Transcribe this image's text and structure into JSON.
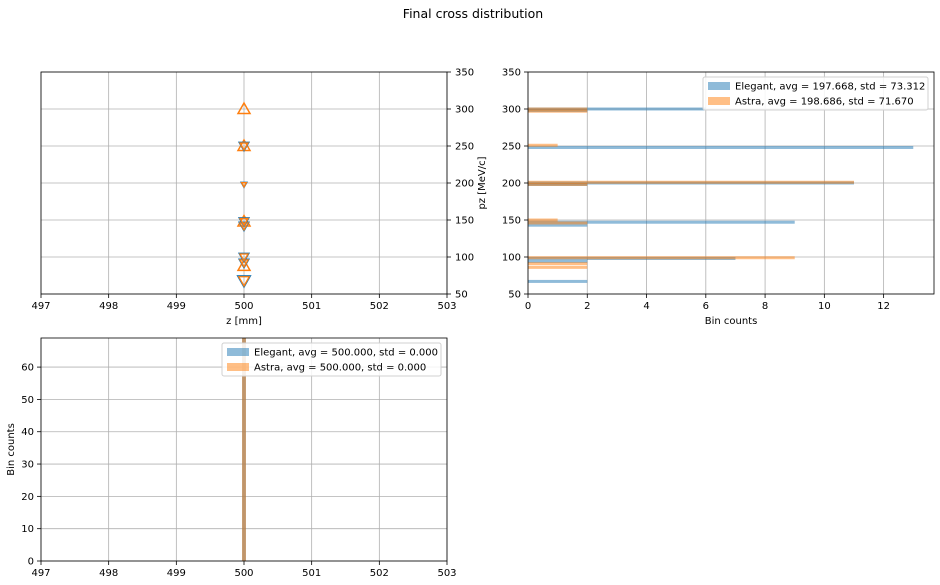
{
  "figure": {
    "title": "Final cross distribution"
  },
  "colors": {
    "elegant": "#1f77b4",
    "astra": "#ff7f0e",
    "grid": "#b0b0b0"
  },
  "chart_data": [
    {
      "type": "scatter",
      "title": "",
      "xlabel": "z [mm]",
      "ylabel": "pz [MeV/c]",
      "xlim": [
        497,
        503
      ],
      "ylim": [
        50,
        350
      ],
      "xticks": [
        497,
        498,
        499,
        500,
        501,
        502,
        503
      ],
      "yticks": [
        50,
        100,
        150,
        200,
        250,
        300,
        350
      ],
      "y_axis_side": "right",
      "grid": true,
      "series": [
        {
          "marker": "triangle-down",
          "x": [
            500,
            500,
            500,
            500,
            500,
            500,
            500
          ],
          "y": [
            68,
            92,
            100,
            142,
            148,
            198,
            250
          ]
        },
        {
          "marker": "triangle-up",
          "x": [
            500,
            500,
            500,
            500
          ],
          "y": [
            88,
            148,
            250,
            300
          ]
        }
      ]
    },
    {
      "type": "bar",
      "orientation": "horizontal",
      "xlabel": "Bin counts",
      "ylabel": "",
      "xlim": [
        0,
        13.7
      ],
      "ylim": [
        50,
        350
      ],
      "xticks": [
        0,
        2,
        4,
        6,
        8,
        10,
        12
      ],
      "yticks": [
        50,
        100,
        150,
        200,
        250,
        300,
        350
      ],
      "grid": true,
      "legend": "top-right",
      "series": [
        {
          "name": "Elegant, avg = 197.668, std = 73.312",
          "bars": [
            {
              "y": 67,
              "count": 2
            },
            {
              "y": 94,
              "count": 2
            },
            {
              "y": 98,
              "count": 7
            },
            {
              "y": 143,
              "count": 2
            },
            {
              "y": 147,
              "count": 9
            },
            {
              "y": 198,
              "count": 2
            },
            {
              "y": 200,
              "count": 11
            },
            {
              "y": 248,
              "count": 13
            },
            {
              "y": 298,
              "count": 2
            },
            {
              "y": 300,
              "count": 6
            }
          ]
        },
        {
          "name": "Astra, avg = 198.686, std = 71.670",
          "bars": [
            {
              "y": 86,
              "count": 2
            },
            {
              "y": 91,
              "count": 2
            },
            {
              "y": 99,
              "count": 9
            },
            {
              "y": 146,
              "count": 2
            },
            {
              "y": 150,
              "count": 1
            },
            {
              "y": 198,
              "count": 2
            },
            {
              "y": 201,
              "count": 11
            },
            {
              "y": 251,
              "count": 1
            },
            {
              "y": 297,
              "count": 2
            },
            {
              "y": 300,
              "count": 2
            }
          ]
        }
      ]
    },
    {
      "type": "bar",
      "xlabel": "",
      "ylabel": "Bin counts",
      "xlim": [
        497,
        503
      ],
      "ylim": [
        0,
        69
      ],
      "xticks": [
        497,
        498,
        499,
        500,
        501,
        502,
        503
      ],
      "yticks": [
        0,
        10,
        20,
        30,
        40,
        50,
        60
      ],
      "grid": true,
      "legend": "top-right",
      "series": [
        {
          "name": "Elegant, avg = 500.000, std = 0.000",
          "bars": [
            {
              "x": 500,
              "count": 69
            }
          ]
        },
        {
          "name": "Astra, avg = 500.000, std = 0.000",
          "bars": [
            {
              "x": 500,
              "count": 69
            }
          ]
        }
      ]
    }
  ]
}
